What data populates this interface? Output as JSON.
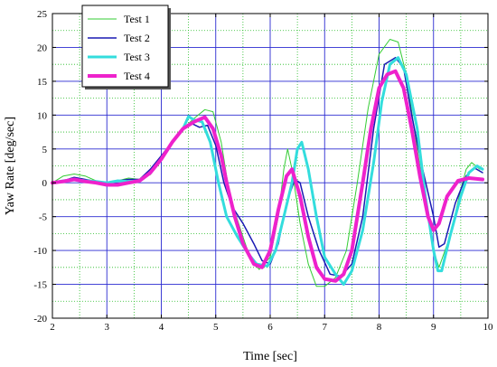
{
  "chart_data": {
    "type": "line",
    "xlabel": "Time [sec]",
    "ylabel": "Yaw Rate [deg/sec]",
    "xlim": [
      2,
      10
    ],
    "ylim": [
      -20,
      25
    ],
    "x_major_ticks": [
      2,
      3,
      4,
      5,
      6,
      7,
      8,
      9,
      10
    ],
    "y_major_ticks": [
      -20,
      -15,
      -10,
      -5,
      0,
      5,
      10,
      15,
      20,
      25
    ],
    "x_tick_labels": [
      "2",
      "3",
      "4",
      "5",
      "6",
      "7",
      "8",
      "9",
      "10"
    ],
    "y_tick_labels": [
      "-20",
      "-15",
      "-10",
      "-5",
      "0",
      "5",
      "10",
      "15",
      "20",
      "25"
    ],
    "major_grid": true,
    "minor_grid": true,
    "legend_position": "top-left",
    "series": [
      {
        "name": "Test 1",
        "color": "#33cc33",
        "points": [
          [
            2.0,
            0.0
          ],
          [
            2.2,
            1.0
          ],
          [
            2.4,
            1.3
          ],
          [
            2.6,
            1.0
          ],
          [
            2.8,
            0.3
          ],
          [
            3.0,
            0.0
          ],
          [
            3.2,
            0.3
          ],
          [
            3.4,
            0.7
          ],
          [
            3.6,
            0.5
          ],
          [
            3.8,
            1.2
          ],
          [
            4.0,
            3.5
          ],
          [
            4.2,
            6.0
          ],
          [
            4.4,
            8.0
          ],
          [
            4.6,
            9.5
          ],
          [
            4.8,
            10.8
          ],
          [
            4.95,
            10.5
          ],
          [
            5.1,
            6.0
          ],
          [
            5.2,
            1.0
          ],
          [
            5.3,
            -3.0
          ],
          [
            5.5,
            -8.0
          ],
          [
            5.65,
            -11.5
          ],
          [
            5.8,
            -12.8
          ],
          [
            6.0,
            -11.0
          ],
          [
            6.15,
            -5.0
          ],
          [
            6.25,
            2.0
          ],
          [
            6.32,
            5.0
          ],
          [
            6.4,
            2.0
          ],
          [
            6.55,
            -6.0
          ],
          [
            6.7,
            -12.0
          ],
          [
            6.85,
            -15.3
          ],
          [
            7.0,
            -15.3
          ],
          [
            7.2,
            -14.0
          ],
          [
            7.4,
            -10.0
          ],
          [
            7.6,
            0.0
          ],
          [
            7.8,
            11.0
          ],
          [
            8.0,
            19.0
          ],
          [
            8.2,
            21.2
          ],
          [
            8.35,
            20.8
          ],
          [
            8.5,
            16.0
          ],
          [
            8.7,
            5.0
          ],
          [
            8.9,
            -5.0
          ],
          [
            9.0,
            -10.0
          ],
          [
            9.1,
            -12.5
          ],
          [
            9.3,
            -8.0
          ],
          [
            9.5,
            -1.0
          ],
          [
            9.6,
            2.0
          ],
          [
            9.7,
            3.0
          ],
          [
            9.85,
            2.0
          ]
        ]
      },
      {
        "name": "Test 2",
        "color": "#1a1ab3",
        "points": [
          [
            2.0,
            0.0
          ],
          [
            2.2,
            0.3
          ],
          [
            2.4,
            0.8
          ],
          [
            2.6,
            0.5
          ],
          [
            2.8,
            0.2
          ],
          [
            3.0,
            0.0
          ],
          [
            3.2,
            0.3
          ],
          [
            3.4,
            0.5
          ],
          [
            3.6,
            0.5
          ],
          [
            3.8,
            2.0
          ],
          [
            4.0,
            4.0
          ],
          [
            4.2,
            6.0
          ],
          [
            4.4,
            8.0
          ],
          [
            4.55,
            8.8
          ],
          [
            4.7,
            8.2
          ],
          [
            4.85,
            8.5
          ],
          [
            5.0,
            5.5
          ],
          [
            5.15,
            0.0
          ],
          [
            5.3,
            -3.5
          ],
          [
            5.5,
            -6.0
          ],
          [
            5.7,
            -9.0
          ],
          [
            5.85,
            -11.5
          ],
          [
            6.0,
            -12.0
          ],
          [
            6.15,
            -9.0
          ],
          [
            6.3,
            -3.0
          ],
          [
            6.45,
            0.5
          ],
          [
            6.55,
            0.0
          ],
          [
            6.7,
            -5.0
          ],
          [
            6.9,
            -10.0
          ],
          [
            7.1,
            -13.5
          ],
          [
            7.3,
            -13.8
          ],
          [
            7.5,
            -12.0
          ],
          [
            7.7,
            -5.0
          ],
          [
            7.9,
            8.0
          ],
          [
            8.1,
            17.5
          ],
          [
            8.3,
            18.5
          ],
          [
            8.45,
            17.0
          ],
          [
            8.6,
            10.0
          ],
          [
            8.8,
            2.0
          ],
          [
            9.0,
            -5.0
          ],
          [
            9.1,
            -9.5
          ],
          [
            9.2,
            -9.0
          ],
          [
            9.4,
            -3.0
          ],
          [
            9.6,
            1.0
          ],
          [
            9.75,
            2.2
          ],
          [
            9.9,
            1.5
          ]
        ]
      },
      {
        "name": "Test 3",
        "color": "#33dddd",
        "points": [
          [
            2.0,
            0.0
          ],
          [
            2.2,
            0.3
          ],
          [
            2.4,
            0.5
          ],
          [
            2.6,
            0.3
          ],
          [
            2.8,
            0.2
          ],
          [
            3.0,
            0.0
          ],
          [
            3.2,
            0.3
          ],
          [
            3.4,
            0.2
          ],
          [
            3.6,
            0.3
          ],
          [
            3.8,
            1.5
          ],
          [
            4.0,
            3.5
          ],
          [
            4.2,
            6.0
          ],
          [
            4.4,
            8.0
          ],
          [
            4.5,
            9.8
          ],
          [
            4.6,
            9.3
          ],
          [
            4.75,
            9.0
          ],
          [
            4.9,
            6.0
          ],
          [
            5.05,
            0.0
          ],
          [
            5.2,
            -5.0
          ],
          [
            5.4,
            -8.0
          ],
          [
            5.6,
            -10.5
          ],
          [
            5.75,
            -12.0
          ],
          [
            5.95,
            -12.3
          ],
          [
            6.1,
            -10.0
          ],
          [
            6.25,
            -5.0
          ],
          [
            6.4,
            0.0
          ],
          [
            6.5,
            5.0
          ],
          [
            6.58,
            6.0
          ],
          [
            6.7,
            2.0
          ],
          [
            6.85,
            -5.0
          ],
          [
            7.0,
            -11.0
          ],
          [
            7.2,
            -13.5
          ],
          [
            7.35,
            -15.0
          ],
          [
            7.5,
            -13.0
          ],
          [
            7.7,
            -7.0
          ],
          [
            7.9,
            3.0
          ],
          [
            8.05,
            12.0
          ],
          [
            8.2,
            17.5
          ],
          [
            8.35,
            18.5
          ],
          [
            8.5,
            16.0
          ],
          [
            8.7,
            8.0
          ],
          [
            8.85,
            -2.0
          ],
          [
            9.0,
            -10.0
          ],
          [
            9.08,
            -13.0
          ],
          [
            9.15,
            -13.0
          ],
          [
            9.3,
            -8.0
          ],
          [
            9.5,
            -2.0
          ],
          [
            9.65,
            1.5
          ],
          [
            9.8,
            2.5
          ],
          [
            9.9,
            2.0
          ]
        ]
      },
      {
        "name": "Test 4",
        "color": "#ee22cc",
        "points": [
          [
            2.0,
            0.0
          ],
          [
            2.2,
            0.2
          ],
          [
            2.4,
            0.5
          ],
          [
            2.6,
            0.2
          ],
          [
            2.8,
            0.0
          ],
          [
            3.0,
            -0.3
          ],
          [
            3.2,
            -0.3
          ],
          [
            3.4,
            0.0
          ],
          [
            3.6,
            0.3
          ],
          [
            3.8,
            1.5
          ],
          [
            4.0,
            3.5
          ],
          [
            4.2,
            6.0
          ],
          [
            4.4,
            8.0
          ],
          [
            4.6,
            9.0
          ],
          [
            4.8,
            9.7
          ],
          [
            4.95,
            8.0
          ],
          [
            5.1,
            4.0
          ],
          [
            5.2,
            0.0
          ],
          [
            5.35,
            -5.0
          ],
          [
            5.5,
            -9.0
          ],
          [
            5.7,
            -12.0
          ],
          [
            5.85,
            -12.5
          ],
          [
            6.0,
            -10.0
          ],
          [
            6.15,
            -4.0
          ],
          [
            6.3,
            1.0
          ],
          [
            6.4,
            2.0
          ],
          [
            6.55,
            -2.0
          ],
          [
            6.7,
            -8.0
          ],
          [
            6.85,
            -12.5
          ],
          [
            7.0,
            -14.2
          ],
          [
            7.2,
            -14.5
          ],
          [
            7.35,
            -13.5
          ],
          [
            7.5,
            -10.0
          ],
          [
            7.7,
            0.0
          ],
          [
            7.85,
            8.0
          ],
          [
            8.0,
            14.0
          ],
          [
            8.15,
            16.0
          ],
          [
            8.3,
            16.5
          ],
          [
            8.45,
            14.0
          ],
          [
            8.6,
            8.0
          ],
          [
            8.75,
            1.0
          ],
          [
            8.9,
            -5.0
          ],
          [
            9.0,
            -7.0
          ],
          [
            9.1,
            -6.0
          ],
          [
            9.25,
            -2.0
          ],
          [
            9.45,
            0.3
          ],
          [
            9.65,
            0.7
          ],
          [
            9.9,
            0.5
          ]
        ]
      }
    ]
  }
}
